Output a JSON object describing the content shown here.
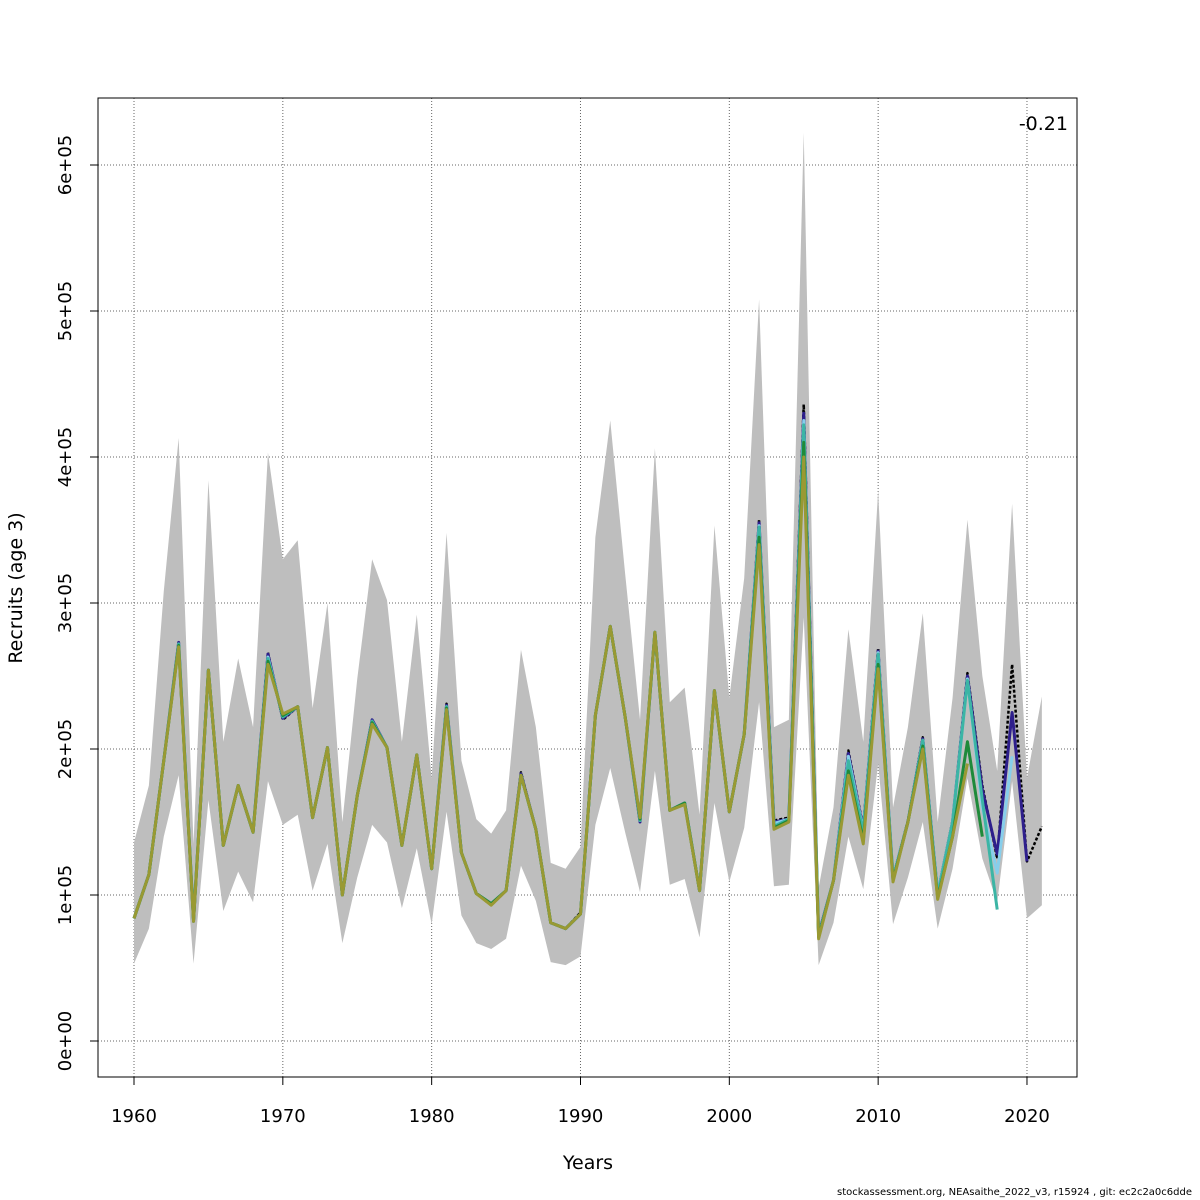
{
  "chart_data": {
    "type": "line",
    "title": "",
    "xlabel": "Years",
    "ylabel": "Recruits (age 3)",
    "xlim": [
      1957.6,
      2023.3
    ],
    "ylim": [
      -25000,
      650000
    ],
    "x_ticks": [
      "1960",
      "1970",
      "1980",
      "1990",
      "2000",
      "2010",
      "2020"
    ],
    "y_ticks": [
      "0e+00",
      "1e+05",
      "2e+05",
      "3e+05",
      "4e+05",
      "5e+05",
      "6e+05"
    ],
    "grid": true,
    "annotation": "-0.21",
    "years": [
      1960,
      1961,
      1962,
      1963,
      1964,
      1965,
      1966,
      1967,
      1968,
      1969,
      1970,
      1971,
      1972,
      1973,
      1974,
      1975,
      1976,
      1977,
      1978,
      1979,
      1980,
      1981,
      1982,
      1983,
      1984,
      1985,
      1986,
      1987,
      1988,
      1989,
      1990,
      1991,
      1992,
      1993,
      1994,
      1995,
      1996,
      1997,
      1998,
      1999,
      2000,
      2001,
      2002,
      2003,
      2004,
      2005,
      2006,
      2007,
      2008,
      2009,
      2010,
      2011,
      2012,
      2013,
      2014,
      2015,
      2016,
      2017,
      2018,
      2019,
      2020,
      2021
    ],
    "band": {
      "color": "#bebebe",
      "upper": [
        136000,
        175000,
        308000,
        413000,
        135000,
        384000,
        205000,
        262000,
        215000,
        403000,
        330000,
        343000,
        228000,
        300000,
        150000,
        248000,
        330000,
        302000,
        205000,
        292000,
        180000,
        348000,
        192000,
        152000,
        142000,
        158000,
        268000,
        215000,
        122000,
        118000,
        133000,
        345000,
        425000,
        320000,
        220000,
        406000,
        232000,
        242000,
        155000,
        353000,
        235000,
        317000,
        508000,
        215000,
        220000,
        622000,
        105000,
        160000,
        282000,
        205000,
        377000,
        160000,
        215000,
        293000,
        150000,
        235000,
        357000,
        250000,
        185000,
        368000,
        180000,
        236000
      ],
      "lower": [
        53000,
        77000,
        140000,
        182000,
        53000,
        165000,
        89000,
        116000,
        95000,
        178000,
        148000,
        155000,
        103000,
        135000,
        67000,
        112000,
        148000,
        136000,
        91000,
        132000,
        80000,
        157000,
        86000,
        67000,
        63000,
        70000,
        120000,
        96000,
        54000,
        52000,
        58000,
        148000,
        187000,
        143000,
        102000,
        185000,
        107000,
        111000,
        71000,
        163000,
        109000,
        146000,
        232000,
        106000,
        107000,
        290000,
        52000,
        81000,
        140000,
        104000,
        190000,
        80000,
        112000,
        150000,
        77000,
        118000,
        180000,
        125000,
        95000,
        178000,
        84000,
        93000
      ]
    },
    "series": [
      {
        "color": "#000000",
        "dashed": true,
        "values": [
          84000,
          114000,
          192000,
          273000,
          83000,
          254000,
          134000,
          175000,
          143000,
          266000,
          220000,
          229000,
          153000,
          201000,
          100000,
          168000,
          220000,
          201000,
          134000,
          196000,
          118000,
          231000,
          129000,
          101000,
          93000,
          103000,
          184000,
          145000,
          81000,
          77000,
          88000,
          223000,
          284000,
          222000,
          151000,
          280000,
          158000,
          163000,
          103000,
          240000,
          157000,
          210000,
          357000,
          151000,
          153000,
          436000,
          73000,
          110000,
          199000,
          146000,
          269000,
          112000,
          151000,
          208000,
          101000,
          151000,
          252000,
          175000,
          125000,
          258000,
          123000,
          147000
        ]
      },
      {
        "color": "#2e1f8c",
        "dashed": false,
        "values": [
          84000,
          114000,
          192000,
          273000,
          83000,
          254000,
          134000,
          175000,
          143000,
          265000,
          221000,
          229000,
          153000,
          201000,
          100000,
          168000,
          220000,
          201000,
          134000,
          196000,
          118000,
          230000,
          129000,
          101000,
          94000,
          103000,
          183000,
          145000,
          81000,
          77000,
          87000,
          223000,
          284000,
          222000,
          150000,
          280000,
          158000,
          163000,
          103000,
          240000,
          157000,
          210000,
          355000,
          150000,
          152000,
          430000,
          73000,
          110000,
          197000,
          145000,
          267000,
          112000,
          150000,
          207000,
          101000,
          150000,
          250000,
          172000,
          128000,
          225000,
          123000
        ]
      },
      {
        "color": "#87ceeb",
        "dashed": false,
        "values": [
          84000,
          114000,
          192000,
          272000,
          83000,
          254000,
          134000,
          175000,
          143000,
          263000,
          222000,
          229000,
          153000,
          201000,
          100000,
          168000,
          219000,
          201000,
          134000,
          196000,
          118000,
          229000,
          129000,
          101000,
          94000,
          103000,
          182000,
          145000,
          81000,
          77000,
          87000,
          223000,
          284000,
          222000,
          151000,
          280000,
          158000,
          163000,
          103000,
          240000,
          157000,
          210000,
          353000,
          149000,
          152000,
          425000,
          72000,
          110000,
          195000,
          144000,
          266000,
          112000,
          150000,
          206000,
          101000,
          150000,
          248000,
          160000,
          115000,
          195000
        ]
      },
      {
        "color": "#3cb5a5",
        "dashed": false,
        "values": [
          84000,
          114000,
          192000,
          272000,
          83000,
          254000,
          134000,
          175000,
          143000,
          262000,
          222000,
          229000,
          153000,
          201000,
          100000,
          168000,
          219000,
          201000,
          134000,
          196000,
          118000,
          229000,
          129000,
          101000,
          94000,
          103000,
          182000,
          145000,
          81000,
          77000,
          87000,
          223000,
          284000,
          222000,
          151000,
          280000,
          158000,
          163000,
          103000,
          240000,
          157000,
          210000,
          352000,
          147000,
          152000,
          422000,
          72000,
          110000,
          192000,
          143000,
          265000,
          111000,
          150000,
          206000,
          100000,
          150000,
          247000,
          165000,
          90000
        ]
      },
      {
        "color": "#1f8a3a",
        "dashed": false,
        "values": [
          84000,
          114000,
          192000,
          271000,
          82000,
          254000,
          134000,
          175000,
          143000,
          260000,
          223000,
          229000,
          153000,
          201000,
          100000,
          168000,
          218000,
          201000,
          134000,
          196000,
          118000,
          228000,
          129000,
          101000,
          94000,
          103000,
          182000,
          145000,
          81000,
          77000,
          87000,
          223000,
          284000,
          222000,
          152000,
          280000,
          158000,
          163000,
          103000,
          240000,
          157000,
          210000,
          345000,
          146000,
          151000,
          410000,
          71000,
          110000,
          185000,
          137000,
          258000,
          110000,
          150000,
          202000,
          98000,
          140000,
          205000,
          140000
        ]
      },
      {
        "color": "#999933",
        "dashed": false,
        "values": [
          84000,
          114000,
          192000,
          270000,
          82000,
          254000,
          134000,
          175000,
          143000,
          258000,
          224000,
          229000,
          153000,
          201000,
          100000,
          168000,
          217000,
          201000,
          134000,
          196000,
          118000,
          227000,
          129000,
          101000,
          93000,
          103000,
          182000,
          145000,
          81000,
          77000,
          87000,
          223000,
          284000,
          222000,
          153000,
          280000,
          158000,
          162000,
          103000,
          240000,
          157000,
          210000,
          340000,
          145000,
          150000,
          400000,
          70000,
          110000,
          182000,
          135000,
          255000,
          109000,
          150000,
          200000,
          97000,
          140000,
          190000
        ]
      }
    ]
  },
  "footer": "stockassessment.org, NEAsaithe_2022_v3, r15924 , git: ec2c2a0c6dde"
}
